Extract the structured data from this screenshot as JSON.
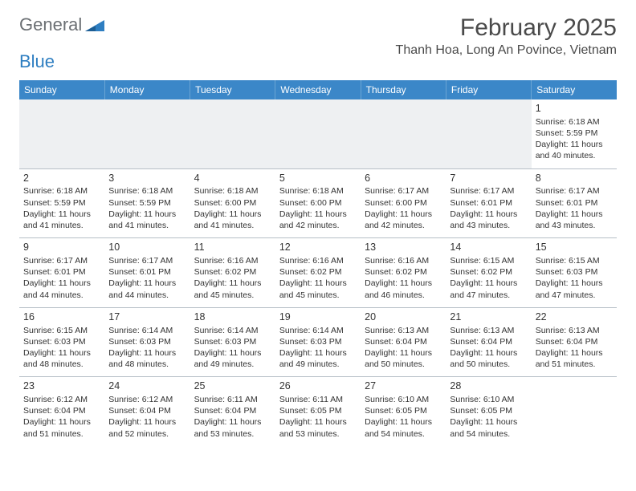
{
  "logo": {
    "part1": "General",
    "part2": "Blue"
  },
  "title": "February 2025",
  "location": "Thanh Hoa, Long An Povince, Vietnam",
  "colors": {
    "header_bg": "#3b87c8",
    "header_text": "#ffffff",
    "grid_line": "#b6bfc7",
    "empty_bg": "#eef0f2",
    "text": "#333333",
    "logo_gray": "#6b6f73",
    "logo_blue": "#2e7ec1"
  },
  "day_headers": [
    "Sunday",
    "Monday",
    "Tuesday",
    "Wednesday",
    "Thursday",
    "Friday",
    "Saturday"
  ],
  "weeks": [
    [
      null,
      null,
      null,
      null,
      null,
      null,
      {
        "n": "1",
        "sr": "Sunrise: 6:18 AM",
        "ss": "Sunset: 5:59 PM",
        "dl": "Daylight: 11 hours and 40 minutes."
      }
    ],
    [
      {
        "n": "2",
        "sr": "Sunrise: 6:18 AM",
        "ss": "Sunset: 5:59 PM",
        "dl": "Daylight: 11 hours and 41 minutes."
      },
      {
        "n": "3",
        "sr": "Sunrise: 6:18 AM",
        "ss": "Sunset: 5:59 PM",
        "dl": "Daylight: 11 hours and 41 minutes."
      },
      {
        "n": "4",
        "sr": "Sunrise: 6:18 AM",
        "ss": "Sunset: 6:00 PM",
        "dl": "Daylight: 11 hours and 41 minutes."
      },
      {
        "n": "5",
        "sr": "Sunrise: 6:18 AM",
        "ss": "Sunset: 6:00 PM",
        "dl": "Daylight: 11 hours and 42 minutes."
      },
      {
        "n": "6",
        "sr": "Sunrise: 6:17 AM",
        "ss": "Sunset: 6:00 PM",
        "dl": "Daylight: 11 hours and 42 minutes."
      },
      {
        "n": "7",
        "sr": "Sunrise: 6:17 AM",
        "ss": "Sunset: 6:01 PM",
        "dl": "Daylight: 11 hours and 43 minutes."
      },
      {
        "n": "8",
        "sr": "Sunrise: 6:17 AM",
        "ss": "Sunset: 6:01 PM",
        "dl": "Daylight: 11 hours and 43 minutes."
      }
    ],
    [
      {
        "n": "9",
        "sr": "Sunrise: 6:17 AM",
        "ss": "Sunset: 6:01 PM",
        "dl": "Daylight: 11 hours and 44 minutes."
      },
      {
        "n": "10",
        "sr": "Sunrise: 6:17 AM",
        "ss": "Sunset: 6:01 PM",
        "dl": "Daylight: 11 hours and 44 minutes."
      },
      {
        "n": "11",
        "sr": "Sunrise: 6:16 AM",
        "ss": "Sunset: 6:02 PM",
        "dl": "Daylight: 11 hours and 45 minutes."
      },
      {
        "n": "12",
        "sr": "Sunrise: 6:16 AM",
        "ss": "Sunset: 6:02 PM",
        "dl": "Daylight: 11 hours and 45 minutes."
      },
      {
        "n": "13",
        "sr": "Sunrise: 6:16 AM",
        "ss": "Sunset: 6:02 PM",
        "dl": "Daylight: 11 hours and 46 minutes."
      },
      {
        "n": "14",
        "sr": "Sunrise: 6:15 AM",
        "ss": "Sunset: 6:02 PM",
        "dl": "Daylight: 11 hours and 47 minutes."
      },
      {
        "n": "15",
        "sr": "Sunrise: 6:15 AM",
        "ss": "Sunset: 6:03 PM",
        "dl": "Daylight: 11 hours and 47 minutes."
      }
    ],
    [
      {
        "n": "16",
        "sr": "Sunrise: 6:15 AM",
        "ss": "Sunset: 6:03 PM",
        "dl": "Daylight: 11 hours and 48 minutes."
      },
      {
        "n": "17",
        "sr": "Sunrise: 6:14 AM",
        "ss": "Sunset: 6:03 PM",
        "dl": "Daylight: 11 hours and 48 minutes."
      },
      {
        "n": "18",
        "sr": "Sunrise: 6:14 AM",
        "ss": "Sunset: 6:03 PM",
        "dl": "Daylight: 11 hours and 49 minutes."
      },
      {
        "n": "19",
        "sr": "Sunrise: 6:14 AM",
        "ss": "Sunset: 6:03 PM",
        "dl": "Daylight: 11 hours and 49 minutes."
      },
      {
        "n": "20",
        "sr": "Sunrise: 6:13 AM",
        "ss": "Sunset: 6:04 PM",
        "dl": "Daylight: 11 hours and 50 minutes."
      },
      {
        "n": "21",
        "sr": "Sunrise: 6:13 AM",
        "ss": "Sunset: 6:04 PM",
        "dl": "Daylight: 11 hours and 50 minutes."
      },
      {
        "n": "22",
        "sr": "Sunrise: 6:13 AM",
        "ss": "Sunset: 6:04 PM",
        "dl": "Daylight: 11 hours and 51 minutes."
      }
    ],
    [
      {
        "n": "23",
        "sr": "Sunrise: 6:12 AM",
        "ss": "Sunset: 6:04 PM",
        "dl": "Daylight: 11 hours and 51 minutes."
      },
      {
        "n": "24",
        "sr": "Sunrise: 6:12 AM",
        "ss": "Sunset: 6:04 PM",
        "dl": "Daylight: 11 hours and 52 minutes."
      },
      {
        "n": "25",
        "sr": "Sunrise: 6:11 AM",
        "ss": "Sunset: 6:04 PM",
        "dl": "Daylight: 11 hours and 53 minutes."
      },
      {
        "n": "26",
        "sr": "Sunrise: 6:11 AM",
        "ss": "Sunset: 6:05 PM",
        "dl": "Daylight: 11 hours and 53 minutes."
      },
      {
        "n": "27",
        "sr": "Sunrise: 6:10 AM",
        "ss": "Sunset: 6:05 PM",
        "dl": "Daylight: 11 hours and 54 minutes."
      },
      {
        "n": "28",
        "sr": "Sunrise: 6:10 AM",
        "ss": "Sunset: 6:05 PM",
        "dl": "Daylight: 11 hours and 54 minutes."
      },
      null
    ]
  ]
}
